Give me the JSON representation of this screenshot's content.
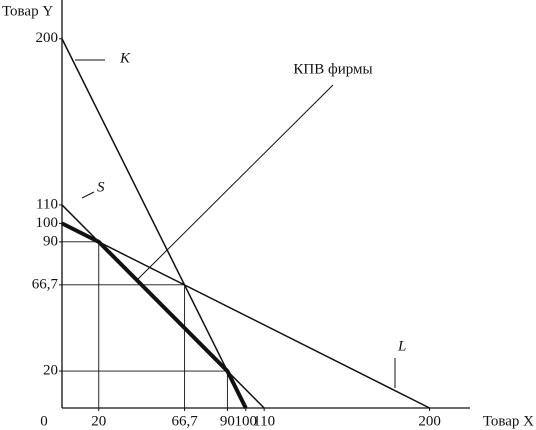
{
  "chart_data": {
    "type": "line",
    "x_label": "Товар X",
    "y_label": "Товар Y",
    "origin_label": "0",
    "xlim": [
      0,
      222
    ],
    "ylim": [
      0,
      221
    ],
    "xticks": [
      20,
      {
        "value": 66.7,
        "label": "66,7"
      },
      90,
      100,
      110,
      200
    ],
    "yticks": [
      20,
      {
        "value": 66.7,
        "label": "66,7"
      },
      90,
      100,
      110,
      200
    ],
    "series": [
      {
        "name": "K",
        "x": [
          0,
          100
        ],
        "values": [
          200,
          0
        ],
        "color": "#111"
      },
      {
        "name": "S",
        "x": [
          0,
          110
        ],
        "values": [
          110,
          0
        ],
        "color": "#111"
      },
      {
        "name": "L",
        "x": [
          0,
          200
        ],
        "values": [
          100,
          0
        ],
        "color": "#111"
      },
      {
        "name": "КПВ фирмы",
        "x": [
          0,
          20,
          90,
          100
        ],
        "values": [
          100,
          90,
          20,
          0
        ],
        "color": "#111",
        "thick": true
      }
    ],
    "guides": {
      "x": [
        20,
        66.7,
        90
      ],
      "y": [
        90,
        66.7,
        20
      ]
    }
  }
}
